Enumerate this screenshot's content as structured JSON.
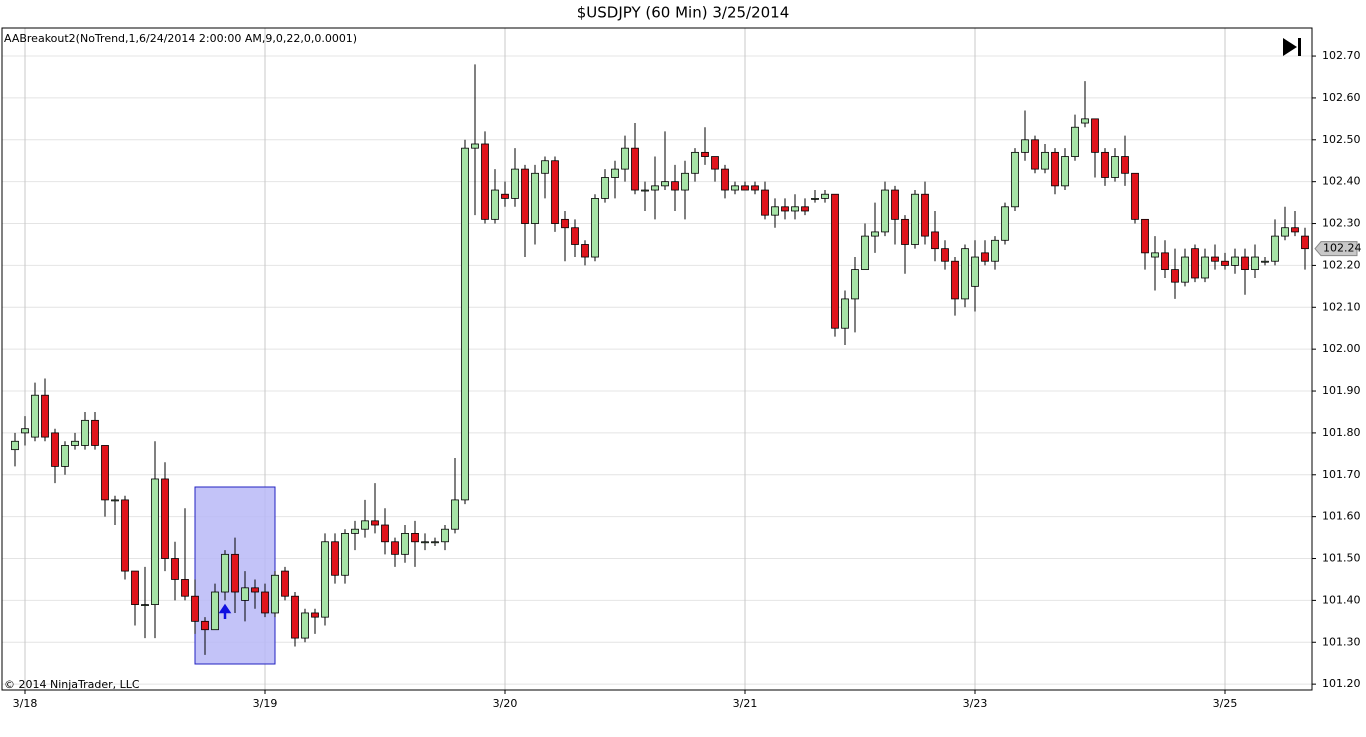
{
  "chart_data": {
    "type": "candlestick",
    "title": "$USDJPY (60 Min)  3/25/2014",
    "indicator_label": "AABreakout2(NoTrend,1,6/24/2014 2:00:00 AM,9,0,22,0,0.0001)",
    "copyright": "© 2014 NinjaTrader, LLC",
    "last_price": 102.24,
    "up_color": "#a6e3a6",
    "down_color": "#e0141c",
    "grid": true,
    "categories": [
      null,
      "3/18",
      null,
      null,
      null,
      null,
      null,
      null,
      null,
      null,
      null,
      null,
      null,
      null,
      null,
      null,
      null,
      null,
      null,
      null,
      null,
      null,
      null,
      null,
      null,
      "3/19",
      null,
      null,
      null,
      null,
      null,
      null,
      null,
      null,
      null,
      null,
      null,
      null,
      null,
      null,
      null,
      null,
      null,
      null,
      null,
      null,
      null,
      null,
      null,
      "3/20",
      null,
      null,
      null,
      null,
      null,
      null,
      null,
      null,
      null,
      null,
      null,
      null,
      null,
      null,
      null,
      null,
      null,
      null,
      null,
      null,
      null,
      null,
      null,
      "3/21",
      null,
      null,
      null,
      null,
      null,
      null,
      null,
      null,
      null,
      null,
      null,
      null,
      null,
      null,
      null,
      null,
      null,
      null,
      null,
      null,
      null,
      null,
      "3/23",
      null,
      null,
      null,
      null,
      null,
      null,
      null,
      null,
      null,
      null,
      null,
      null,
      null,
      null,
      null,
      null,
      null,
      null,
      null,
      null,
      null,
      null,
      null,
      null,
      "3/25",
      null,
      null,
      null,
      null,
      null,
      null,
      null,
      null
    ],
    "open": [
      101.76,
      101.8,
      101.79,
      101.89,
      101.8,
      101.72,
      101.77,
      101.77,
      101.83,
      101.77,
      101.64,
      101.64,
      101.47,
      101.39,
      101.39,
      101.69,
      101.5,
      101.45,
      101.41,
      101.35,
      101.33,
      101.42,
      101.51,
      101.4,
      101.43,
      101.42,
      101.37,
      101.47,
      101.41,
      101.31,
      101.37,
      101.36,
      101.54,
      101.46,
      101.56,
      101.57,
      101.59,
      101.58,
      101.54,
      101.51,
      101.56,
      101.54,
      101.54,
      101.54,
      101.57,
      101.64,
      102.48,
      102.49,
      102.31,
      102.37,
      102.36,
      102.43,
      102.3,
      102.42,
      102.45,
      102.31,
      102.29,
      102.25,
      102.22,
      102.36,
      102.41,
      102.43,
      102.48,
      102.38,
      102.38,
      102.39,
      102.4,
      102.38,
      102.42,
      102.47,
      102.46,
      102.43,
      102.38,
      102.39,
      102.39,
      102.38,
      102.32,
      102.34,
      102.33,
      102.34,
      102.36,
      102.36,
      102.37,
      102.05,
      102.12,
      102.19,
      102.27,
      102.28,
      102.38,
      102.31,
      102.25,
      102.37,
      102.28,
      102.24,
      102.21,
      102.12,
      102.15,
      102.23,
      102.21,
      102.26,
      102.34,
      102.47,
      102.5,
      102.43,
      102.47,
      102.39,
      102.46,
      102.54,
      102.55,
      102.47,
      102.41,
      102.46,
      102.42,
      102.31,
      102.22,
      102.23,
      102.19,
      102.16,
      102.24,
      102.17,
      102.22,
      102.21,
      102.2,
      102.22,
      102.19,
      102.21,
      102.21,
      102.27,
      102.29,
      102.27
    ],
    "high": [
      101.8,
      101.84,
      101.92,
      101.93,
      101.81,
      101.78,
      101.8,
      101.85,
      101.85,
      101.77,
      101.65,
      101.65,
      101.47,
      101.48,
      101.78,
      101.73,
      101.54,
      101.62,
      101.45,
      101.36,
      101.44,
      101.52,
      101.55,
      101.47,
      101.45,
      101.44,
      101.47,
      101.48,
      101.42,
      101.38,
      101.38,
      101.56,
      101.56,
      101.57,
      101.59,
      101.64,
      101.68,
      101.62,
      101.55,
      101.58,
      101.59,
      101.56,
      101.55,
      101.58,
      101.74,
      102.5,
      102.68,
      102.52,
      102.43,
      102.4,
      102.48,
      102.44,
      102.44,
      102.46,
      102.46,
      102.33,
      102.31,
      102.26,
      102.37,
      102.43,
      102.45,
      102.51,
      102.54,
      102.4,
      102.46,
      102.52,
      102.44,
      102.45,
      102.48,
      102.53,
      102.46,
      102.44,
      102.4,
      102.4,
      102.4,
      102.4,
      102.36,
      102.36,
      102.37,
      102.36,
      102.38,
      102.38,
      102.37,
      102.14,
      102.22,
      102.3,
      102.35,
      102.4,
      102.39,
      102.32,
      102.38,
      102.4,
      102.33,
      102.26,
      102.22,
      102.25,
      102.26,
      102.26,
      102.27,
      102.35,
      102.48,
      102.57,
      102.51,
      102.49,
      102.48,
      102.48,
      102.56,
      102.64,
      102.55,
      102.48,
      102.48,
      102.51,
      102.42,
      102.31,
      102.27,
      102.26,
      102.24,
      102.24,
      102.25,
      102.24,
      102.25,
      102.23,
      102.24,
      102.24,
      102.25,
      102.22,
      102.31,
      102.34,
      102.33,
      102.29
    ],
    "low": [
      101.72,
      101.77,
      101.78,
      101.78,
      101.68,
      101.7,
      101.76,
      101.76,
      101.76,
      101.6,
      101.58,
      101.45,
      101.34,
      101.31,
      101.31,
      101.47,
      101.4,
      101.4,
      101.32,
      101.27,
      101.33,
      101.4,
      101.37,
      101.35,
      101.38,
      101.36,
      101.36,
      101.4,
      101.29,
      101.3,
      101.32,
      101.34,
      101.44,
      101.44,
      101.52,
      101.55,
      101.56,
      101.51,
      101.48,
      101.49,
      101.48,
      101.52,
      101.53,
      101.52,
      101.56,
      101.63,
      102.32,
      102.3,
      102.3,
      102.34,
      102.34,
      102.22,
      102.25,
      102.36,
      102.28,
      102.21,
      102.22,
      102.2,
      102.21,
      102.35,
      102.36,
      102.4,
      102.37,
      102.33,
      102.31,
      102.38,
      102.33,
      102.31,
      102.4,
      102.44,
      102.4,
      102.36,
      102.37,
      102.38,
      102.37,
      102.31,
      102.29,
      102.31,
      102.31,
      102.32,
      102.35,
      102.35,
      102.03,
      102.01,
      102.04,
      102.19,
      102.23,
      102.27,
      102.25,
      102.18,
      102.24,
      102.25,
      102.21,
      102.19,
      102.08,
      102.1,
      102.09,
      102.2,
      102.19,
      102.25,
      102.33,
      102.45,
      102.42,
      102.42,
      102.37,
      102.38,
      102.45,
      102.53,
      102.41,
      102.39,
      102.4,
      102.39,
      102.3,
      102.19,
      102.14,
      102.17,
      102.12,
      102.15,
      102.16,
      102.16,
      102.19,
      102.19,
      102.18,
      102.13,
      102.17,
      102.2,
      102.2,
      102.26,
      102.27,
      102.19
    ],
    "close": [
      101.78,
      101.81,
      101.89,
      101.79,
      101.72,
      101.77,
      101.78,
      101.83,
      101.77,
      101.64,
      101.64,
      101.47,
      101.39,
      101.39,
      101.69,
      101.5,
      101.45,
      101.41,
      101.35,
      101.33,
      101.42,
      101.51,
      101.42,
      101.43,
      101.42,
      101.37,
      101.46,
      101.41,
      101.31,
      101.37,
      101.36,
      101.54,
      101.46,
      101.56,
      101.57,
      101.59,
      101.58,
      101.54,
      101.51,
      101.56,
      101.54,
      101.54,
      101.54,
      101.57,
      101.64,
      102.48,
      102.49,
      102.31,
      102.38,
      102.36,
      102.43,
      102.3,
      102.42,
      102.45,
      102.3,
      102.29,
      102.25,
      102.22,
      102.36,
      102.41,
      102.43,
      102.48,
      102.38,
      102.38,
      102.39,
      102.4,
      102.38,
      102.42,
      102.47,
      102.46,
      102.43,
      102.38,
      102.39,
      102.38,
      102.38,
      102.32,
      102.34,
      102.33,
      102.34,
      102.33,
      102.36,
      102.37,
      102.05,
      102.12,
      102.19,
      102.27,
      102.28,
      102.38,
      102.31,
      102.25,
      102.37,
      102.27,
      102.24,
      102.21,
      102.12,
      102.24,
      102.22,
      102.21,
      102.26,
      102.34,
      102.47,
      102.5,
      102.43,
      102.47,
      102.39,
      102.46,
      102.53,
      102.55,
      102.47,
      102.41,
      102.46,
      102.42,
      102.31,
      102.23,
      102.23,
      102.19,
      102.16,
      102.22,
      102.17,
      102.22,
      102.21,
      102.2,
      102.22,
      102.19,
      102.22,
      102.21,
      102.27,
      102.29,
      102.28,
      102.24
    ],
    "ylim": [
      101.186,
      102.767
    ],
    "yticks": [
      {
        "value": 101.2,
        "label": "101.20"
      },
      {
        "value": 101.3,
        "label": "101.30"
      },
      {
        "value": 101.4,
        "label": "101.40"
      },
      {
        "value": 101.5,
        "label": "101.50"
      },
      {
        "value": 101.6,
        "label": "101.60"
      },
      {
        "value": 101.7,
        "label": "101.70"
      },
      {
        "value": 101.8,
        "label": "101.80"
      },
      {
        "value": 101.9,
        "label": "101.90"
      },
      {
        "value": 102.0,
        "label": "102.00"
      },
      {
        "value": 102.1,
        "label": "102.10"
      },
      {
        "value": 102.2,
        "label": "102.20"
      },
      {
        "value": 102.3,
        "label": "102.30"
      },
      {
        "value": 102.4,
        "label": "102.40"
      },
      {
        "value": 102.5,
        "label": "102.50"
      },
      {
        "value": 102.6,
        "label": "102.60"
      },
      {
        "value": 102.7,
        "label": "102.70"
      }
    ]
  }
}
